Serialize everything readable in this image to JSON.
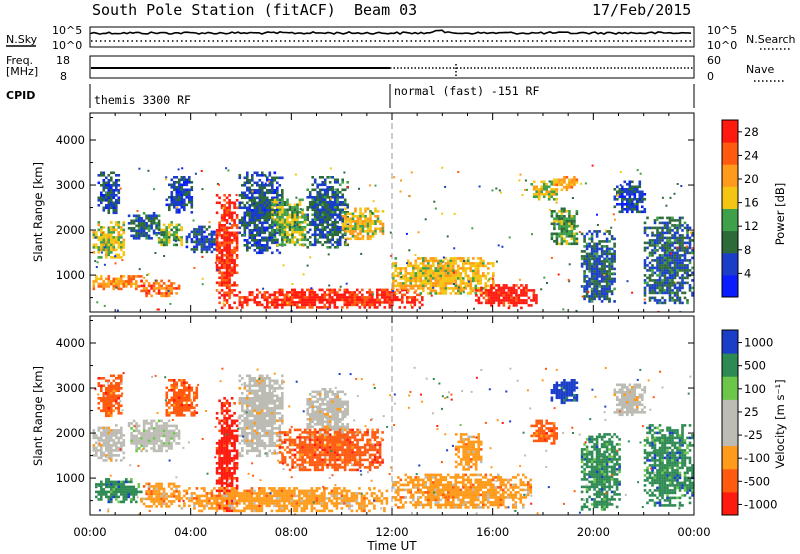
{
  "header": {
    "station": "South Pole Station (fitACF)",
    "beam": "Beam 03",
    "date": "17/Feb/2015"
  },
  "top_panels": {
    "nsky_label": "N.Sky",
    "nsky_ticks": [
      "10^5",
      "10^0"
    ],
    "nsearch_label": "N.Search",
    "nsearch_ticks": [
      "10^5",
      "10^0"
    ],
    "freq_label_1": "Freq.",
    "freq_label_2": "[MHz]",
    "freq_ticks": [
      "18",
      "8"
    ],
    "nave_label": "Nave",
    "nave_ticks": [
      "60",
      "0"
    ],
    "cpid_label": "CPID",
    "cpid_left": "themis 3300 RF",
    "cpid_right": "normal (fast) -151 RF"
  },
  "colors": {
    "power_scale": [
      "#0a1dff",
      "#1b3ec9",
      "#2d6a3a",
      "#3fa04a",
      "#f4c613",
      "#ff9a1a",
      "#ff5a10",
      "#ff1a10"
    ],
    "velocity_scale": [
      "#ff1a10",
      "#ff5a10",
      "#ff9a1a",
      "#bcbcb4",
      "#bcbcb4",
      "#6cc64a",
      "#2d8a52",
      "#1b3ec9"
    ],
    "ground_scatter": "#bcbcb4"
  },
  "chart_data": [
    {
      "type": "heatmap",
      "title": "Power",
      "xlabel": "Time UT",
      "ylabel": "Slant Range [km]",
      "x_ticks": [
        "00:00",
        "04:00",
        "08:00",
        "12:00",
        "16:00",
        "20:00",
        "00:00"
      ],
      "x_range_hours": [
        0,
        24
      ],
      "y_ticks": [
        "1000",
        "2000",
        "3000",
        "4000"
      ],
      "y_range_km": [
        180,
        4600
      ],
      "colorbar_label": "Power [dB]",
      "colorbar_ticks": [
        "4",
        "8",
        "12",
        "16",
        "20",
        "24",
        "28"
      ],
      "colorbar_range": [
        0,
        30
      ],
      "regions": [
        {
          "t0": 0.1,
          "t1": 1.3,
          "r0": 1400,
          "r1": 2200,
          "level": 16
        },
        {
          "t0": 0.3,
          "t1": 1.1,
          "r0": 2400,
          "r1": 3300,
          "level": 6
        },
        {
          "t0": 0.1,
          "t1": 2.0,
          "r0": 700,
          "r1": 1000,
          "level": 22
        },
        {
          "t0": 1.5,
          "t1": 2.7,
          "r0": 1800,
          "r1": 2400,
          "level": 8
        },
        {
          "t0": 2.6,
          "t1": 3.6,
          "r0": 1700,
          "r1": 2200,
          "level": 14
        },
        {
          "t0": 3.0,
          "t1": 4.0,
          "r0": 2400,
          "r1": 3200,
          "level": 6
        },
        {
          "t0": 2.0,
          "t1": 3.5,
          "r0": 550,
          "r1": 900,
          "level": 24
        },
        {
          "t0": 3.8,
          "t1": 5.0,
          "r0": 1500,
          "r1": 2100,
          "level": 6
        },
        {
          "t0": 5.0,
          "t1": 5.8,
          "r0": 300,
          "r1": 2800,
          "level": 27
        },
        {
          "t0": 5.9,
          "t1": 7.6,
          "r0": 1500,
          "r1": 3300,
          "level": 7
        },
        {
          "t0": 7.2,
          "t1": 8.5,
          "r0": 1700,
          "r1": 2700,
          "level": 14
        },
        {
          "t0": 8.6,
          "t1": 10.2,
          "r0": 1600,
          "r1": 3200,
          "level": 8
        },
        {
          "t0": 10.0,
          "t1": 11.6,
          "r0": 1800,
          "r1": 2500,
          "level": 18
        },
        {
          "t0": 5.9,
          "t1": 13.2,
          "r0": 300,
          "r1": 700,
          "level": 28
        },
        {
          "t0": 12.0,
          "t1": 16.0,
          "r0": 600,
          "r1": 1400,
          "level": 18
        },
        {
          "t0": 15.3,
          "t1": 17.7,
          "r0": 300,
          "r1": 800,
          "level": 29
        },
        {
          "t0": 17.5,
          "t1": 18.5,
          "r0": 2700,
          "r1": 3100,
          "level": 16
        },
        {
          "t0": 18.3,
          "t1": 19.3,
          "r0": 1700,
          "r1": 2500,
          "level": 12
        },
        {
          "t0": 18.4,
          "t1": 19.3,
          "r0": 2900,
          "r1": 3200,
          "level": 20
        },
        {
          "t0": 19.5,
          "t1": 20.8,
          "r0": 400,
          "r1": 2000,
          "level": 8
        },
        {
          "t0": 20.8,
          "t1": 22.0,
          "r0": 2400,
          "r1": 3100,
          "level": 6
        },
        {
          "t0": 22.0,
          "t1": 23.9,
          "r0": 400,
          "r1": 2300,
          "level": 8
        }
      ]
    },
    {
      "type": "heatmap",
      "title": "Velocity",
      "xlabel": "Time UT",
      "ylabel": "Slant Range [km]",
      "x_ticks": [
        "00:00",
        "04:00",
        "08:00",
        "12:00",
        "16:00",
        "20:00",
        "00:00"
      ],
      "x_range_hours": [
        0,
        24
      ],
      "y_ticks": [
        "1000",
        "2000",
        "3000",
        "4000"
      ],
      "y_range_km": [
        180,
        4600
      ],
      "colorbar_label": "Velocity [m s⁻¹]",
      "colorbar_ticks": [
        "1000",
        "500",
        "100",
        "25",
        "-25",
        "-100",
        "-500",
        "-1000"
      ],
      "regions": [
        {
          "t0": 0.1,
          "t1": 1.3,
          "r0": 1400,
          "r1": 2200,
          "level": 3
        },
        {
          "t0": 0.3,
          "t1": 1.2,
          "r0": 2400,
          "r1": 3300,
          "level": 1
        },
        {
          "t0": 0.2,
          "t1": 2.0,
          "r0": 500,
          "r1": 1000,
          "level": 6
        },
        {
          "t0": 1.5,
          "t1": 3.5,
          "r0": 1600,
          "r1": 2300,
          "level": 4
        },
        {
          "t0": 2.0,
          "t1": 3.5,
          "r0": 400,
          "r1": 900,
          "level": 2
        },
        {
          "t0": 3.0,
          "t1": 4.2,
          "r0": 2400,
          "r1": 3200,
          "level": 1
        },
        {
          "t0": 5.0,
          "t1": 5.8,
          "r0": 300,
          "r1": 2800,
          "level": 0
        },
        {
          "t0": 5.9,
          "t1": 7.6,
          "r0": 1500,
          "r1": 3300,
          "level": 3
        },
        {
          "t0": 8.6,
          "t1": 10.2,
          "r0": 1800,
          "r1": 3000,
          "level": 3
        },
        {
          "t0": 7.5,
          "t1": 11.6,
          "r0": 1200,
          "r1": 2100,
          "level": 1
        },
        {
          "t0": 3.5,
          "t1": 11.8,
          "r0": 300,
          "r1": 800,
          "level": 2
        },
        {
          "t0": 12.0,
          "t1": 17.5,
          "r0": 350,
          "r1": 1100,
          "level": 2
        },
        {
          "t0": 14.5,
          "t1": 15.5,
          "r0": 1200,
          "r1": 2000,
          "level": 2
        },
        {
          "t0": 17.5,
          "t1": 18.5,
          "r0": 1800,
          "r1": 2300,
          "level": 1
        },
        {
          "t0": 18.3,
          "t1": 19.4,
          "r0": 2700,
          "r1": 3200,
          "level": 7
        },
        {
          "t0": 19.5,
          "t1": 21.0,
          "r0": 300,
          "r1": 2000,
          "level": 6
        },
        {
          "t0": 20.8,
          "t1": 22.0,
          "r0": 2400,
          "r1": 3100,
          "level": 3
        },
        {
          "t0": 22.0,
          "t1": 23.9,
          "r0": 400,
          "r1": 2200,
          "level": 6
        }
      ]
    }
  ]
}
